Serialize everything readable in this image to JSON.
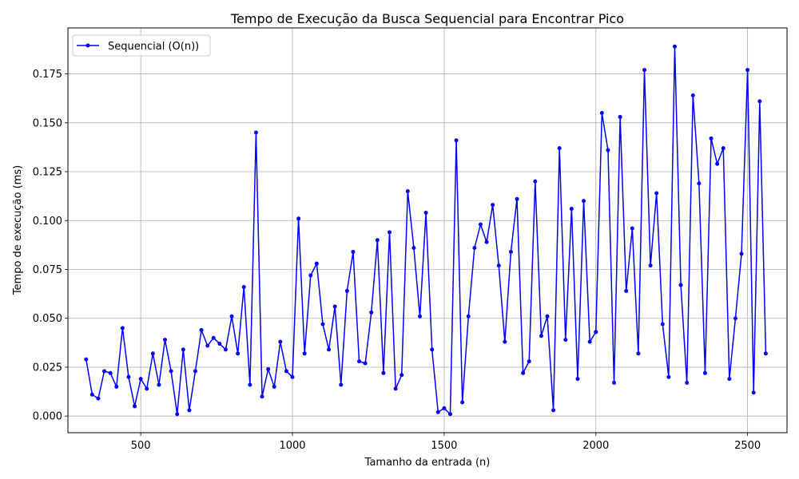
{
  "chart_data": {
    "type": "line",
    "title": "Tempo de Execução da Busca Sequencial para Encontrar Pico",
    "xlabel": "Tamanho da entrada (n)",
    "ylabel": "Tempo de execução (ms)",
    "xlim": [
      260,
      2630
    ],
    "ylim": [
      -0.0085,
      0.1985
    ],
    "xticks": [
      500,
      1000,
      1500,
      2000,
      2500
    ],
    "yticks": [
      0.0,
      0.025,
      0.05,
      0.075,
      0.1,
      0.125,
      0.15,
      0.175
    ],
    "xtick_labels": [
      "500",
      "1000",
      "1500",
      "2000",
      "2500"
    ],
    "ytick_labels": [
      "0.000",
      "0.025",
      "0.050",
      "0.075",
      "0.100",
      "0.125",
      "0.150",
      "0.175"
    ],
    "grid": true,
    "legend_position": "top-left",
    "series": [
      {
        "name": "Sequencial (O(n))",
        "color": "#0000ff",
        "marker": "circle",
        "x": [
          320,
          340,
          360,
          380,
          400,
          420,
          440,
          460,
          480,
          500,
          520,
          540,
          560,
          580,
          600,
          620,
          640,
          660,
          680,
          700,
          720,
          740,
          760,
          780,
          800,
          820,
          840,
          860,
          880,
          900,
          920,
          940,
          960,
          980,
          1000,
          1020,
          1040,
          1060,
          1080,
          1100,
          1120,
          1140,
          1160,
          1180,
          1200,
          1220,
          1240,
          1260,
          1280,
          1300,
          1320,
          1340,
          1360,
          1380,
          1400,
          1420,
          1440,
          1460,
          1480,
          1500,
          1520,
          1540,
          1560,
          1580,
          1600,
          1620,
          1640,
          1660,
          1680,
          1700,
          1720,
          1740,
          1760,
          1780,
          1800,
          1820,
          1840,
          1860,
          1880,
          1900,
          1920,
          1940,
          1960,
          1980,
          2000,
          2020,
          2040,
          2060,
          2080,
          2100,
          2120,
          2140,
          2160,
          2180,
          2200,
          2220,
          2240,
          2260,
          2280,
          2300,
          2320,
          2340,
          2360,
          2380,
          2400,
          2420,
          2440,
          2460,
          2480,
          2500,
          2520,
          2540,
          2560
        ],
        "y": [
          0.029,
          0.011,
          0.009,
          0.023,
          0.022,
          0.015,
          0.045,
          0.02,
          0.005,
          0.019,
          0.014,
          0.032,
          0.016,
          0.039,
          0.023,
          0.001,
          0.034,
          0.003,
          0.023,
          0.044,
          0.036,
          0.04,
          0.037,
          0.034,
          0.051,
          0.032,
          0.066,
          0.016,
          0.145,
          0.01,
          0.024,
          0.015,
          0.038,
          0.023,
          0.02,
          0.101,
          0.032,
          0.072,
          0.078,
          0.047,
          0.034,
          0.056,
          0.016,
          0.064,
          0.084,
          0.028,
          0.027,
          0.053,
          0.09,
          0.022,
          0.094,
          0.014,
          0.021,
          0.115,
          0.086,
          0.051,
          0.104,
          0.034,
          0.002,
          0.004,
          0.001,
          0.141,
          0.007,
          0.051,
          0.086,
          0.098,
          0.089,
          0.108,
          0.077,
          0.038,
          0.084,
          0.111,
          0.022,
          0.028,
          0.12,
          0.041,
          0.051,
          0.003,
          0.137,
          0.039,
          0.106,
          0.019,
          0.11,
          0.038,
          0.043,
          0.155,
          0.136,
          0.017,
          0.153,
          0.064,
          0.096,
          0.032,
          0.177,
          0.077,
          0.114,
          0.047,
          0.02,
          0.189,
          0.067,
          0.017,
          0.164,
          0.119,
          0.022,
          0.142,
          0.129,
          0.137,
          0.019,
          0.05,
          0.083,
          0.177,
          0.012,
          0.161,
          0.032
        ]
      }
    ]
  }
}
